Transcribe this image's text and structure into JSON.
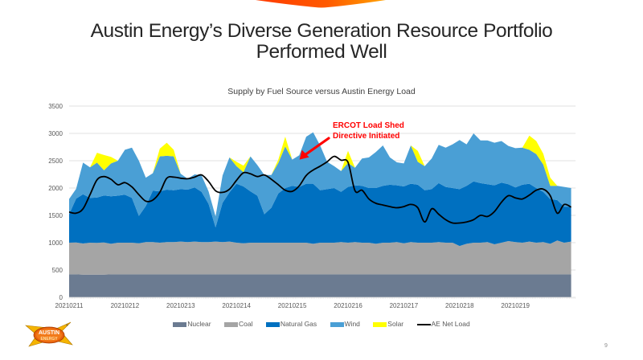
{
  "slide": {
    "title_line1": "Austin Energy’s Diverse Generation Resource Portfolio",
    "title_line2": "Performed Well",
    "page_number": "9",
    "logo_text_top": "AUSTIN",
    "logo_text_bottom": "ENERGY",
    "accent_color": "#ff5a00"
  },
  "chart_data": {
    "type": "area",
    "title": "Supply by Fuel Source versus  Austin Energy Load",
    "xlabel": "",
    "ylabel": "",
    "ylim": [
      0,
      3500
    ],
    "yticks": [
      0,
      500,
      1000,
      1500,
      2000,
      2500,
      3000,
      3500
    ],
    "xtick_labels": [
      "20210211",
      "20210212",
      "20210213",
      "20210214",
      "20210215",
      "20210216",
      "20210217",
      "20210218",
      "20210219"
    ],
    "x_range_days": [
      0,
      9.08
    ],
    "sample_step_days": 0.125,
    "grid": true,
    "legend_position": "bottom",
    "stacked": true,
    "annotation": {
      "line1": "ERCOT Load Shed",
      "line2": "Directive Initiated",
      "color": "#ff0000",
      "points_to_day": 4.13,
      "points_to_value": 2520
    },
    "series": [
      {
        "name": "Nuclear",
        "kind": "area",
        "color": "#6b7b91",
        "values": [
          420,
          420,
          415,
          415,
          415,
          415,
          420,
          420,
          420,
          420,
          420,
          420,
          420,
          420,
          420,
          420,
          420,
          420,
          420,
          420,
          420,
          420,
          420,
          420,
          420,
          420,
          420,
          420,
          420,
          420,
          420,
          420,
          420,
          420,
          420,
          420,
          420,
          420,
          420,
          420,
          420,
          420,
          420,
          420,
          420,
          420,
          420,
          420,
          420,
          420,
          420,
          420,
          420,
          420,
          420,
          420,
          420,
          420,
          420,
          420,
          420,
          420,
          420,
          420,
          420,
          420,
          420,
          420,
          420,
          420,
          420,
          420,
          420
        ]
      },
      {
        "name": "Coal",
        "kind": "area",
        "color": "#a5a5a5",
        "values": [
          580,
          585,
          570,
          585,
          580,
          590,
          560,
          580,
          580,
          580,
          570,
          590,
          590,
          580,
          590,
          590,
          600,
          590,
          600,
          590,
          590,
          600,
          590,
          600,
          580,
          570,
          580,
          580,
          580,
          580,
          580,
          580,
          580,
          580,
          580,
          560,
          580,
          580,
          580,
          590,
          580,
          590,
          580,
          580,
          560,
          580,
          580,
          590,
          570,
          590,
          580,
          580,
          580,
          590,
          580,
          580,
          520,
          560,
          580,
          580,
          590,
          550,
          580,
          610,
          590,
          580,
          600,
          580,
          590,
          560,
          620,
          580,
          600
        ]
      },
      {
        "name": "Natural Gas",
        "kind": "area",
        "color": "#0070c0",
        "values": [
          520,
          800,
          900,
          820,
          830,
          860,
          870,
          860,
          880,
          820,
          500,
          660,
          940,
          940,
          960,
          950,
          960,
          960,
          990,
          920,
          700,
          260,
          720,
          900,
          1080,
          1040,
          940,
          860,
          520,
          640,
          900,
          1000,
          1040,
          1020,
          1080,
          1100,
          960,
          980,
          1000,
          920,
          1020,
          1040,
          1040,
          1000,
          1020,
          1040,
          1060,
          1040,
          1040,
          1070,
          1060,
          960,
          980,
          1080,
          1020,
          1000,
          1040,
          1060,
          1120,
          1090,
          1060,
          1080,
          1100,
          1040,
          1000,
          1060,
          1060,
          1000,
          920,
          820,
          740,
          660,
          640
        ]
      },
      {
        "name": "Wind",
        "kind": "area",
        "color": "#4a9fd5",
        "values": [
          280,
          180,
          580,
          560,
          640,
          460,
          600,
          640,
          820,
          920,
          1010,
          520,
          320,
          640,
          620,
          620,
          280,
          200,
          240,
          300,
          230,
          200,
          500,
          640,
          320,
          260,
          640,
          560,
          720,
          600,
          560,
          760,
          480,
          580,
          860,
          940,
          820,
          500,
          400,
          380,
          440,
          320,
          500,
          560,
          660,
          740,
          500,
          420,
          420,
          700,
          420,
          440,
          560,
          700,
          720,
          800,
          900,
          760,
          880,
          780,
          800,
          780,
          760,
          700,
          720,
          680,
          620,
          620,
          500,
          240,
          260,
          360,
          340
        ]
      },
      {
        "name": "Solar",
        "kind": "area",
        "color": "#ffff00",
        "values": [
          0,
          0,
          0,
          0,
          180,
          280,
          120,
          0,
          0,
          0,
          0,
          0,
          0,
          140,
          240,
          120,
          0,
          0,
          0,
          0,
          0,
          0,
          0,
          0,
          80,
          120,
          0,
          0,
          0,
          0,
          60,
          180,
          0,
          0,
          0,
          0,
          0,
          0,
          0,
          0,
          220,
          0,
          0,
          0,
          0,
          0,
          0,
          0,
          0,
          0,
          200,
          0,
          0,
          0,
          0,
          0,
          0,
          0,
          0,
          0,
          0,
          0,
          0,
          0,
          0,
          0,
          260,
          240,
          200,
          150,
          0,
          0,
          0
        ]
      },
      {
        "name": "AE Net Load",
        "kind": "line",
        "color": "#000000",
        "values": [
          1560,
          1540,
          1620,
          1880,
          2150,
          2210,
          2160,
          2060,
          2100,
          2020,
          1880,
          1760,
          1780,
          1920,
          2180,
          2200,
          2180,
          2170,
          2200,
          2240,
          2120,
          1950,
          1920,
          1980,
          2140,
          2280,
          2260,
          2210,
          2240,
          2160,
          2060,
          1960,
          1940,
          2040,
          2230,
          2330,
          2400,
          2480,
          2580,
          2510,
          2470,
          1950,
          1960,
          1800,
          1720,
          1690,
          1660,
          1640,
          1660,
          1700,
          1640,
          1380,
          1620,
          1520,
          1420,
          1360,
          1360,
          1380,
          1420,
          1500,
          1480,
          1570,
          1740,
          1860,
          1820,
          1800,
          1870,
          1960,
          1980,
          1860,
          1540,
          1700,
          1650
        ]
      }
    ]
  }
}
